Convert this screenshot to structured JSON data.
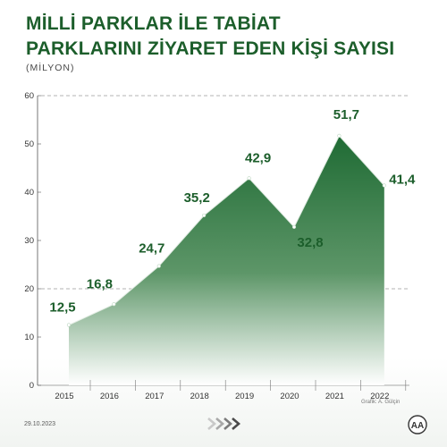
{
  "title_lines": [
    "MİLLİ PARKLAR İLE TABİAT",
    "PARKLARINI ZİYARET EDEN KİŞİ SAYISI"
  ],
  "unit_label": "(MİLYON)",
  "date": "29.10.2023",
  "source_text": "Grafik: A. Gülçin",
  "logo_text": "AA",
  "colors": {
    "title": "#1c5e2b",
    "area_top": "#1f6b34",
    "area_bottom": "#ffffff",
    "label": "#1c5e2b",
    "axis": "#333333",
    "grid": "#9a9a9a"
  },
  "chart_data": {
    "type": "area",
    "x": [
      "2015",
      "2016",
      "2017",
      "2018",
      "2019",
      "2020",
      "2021",
      "2022"
    ],
    "series": [
      {
        "values": [
          12.5,
          16.8,
          24.7,
          35.2,
          42.9,
          32.8,
          51.7,
          41.4
        ]
      }
    ],
    "data_labels": [
      "12,5",
      "16,8",
      "24,7",
      "35,2",
      "42,9",
      "32,8",
      "51,7",
      "41,4"
    ],
    "y_ticks": [
      "0",
      "10",
      "20",
      "30",
      "40",
      "50",
      "60"
    ],
    "ylim": [
      0,
      60
    ],
    "dashed_gridlines_at": [
      20,
      60
    ],
    "title": "MİLLİ PARKLAR İLE TABİAT PARKLARINI ZİYARET EDEN KİŞİ SAYISI",
    "ylabel": "(MİLYON)",
    "xlabel": ""
  }
}
